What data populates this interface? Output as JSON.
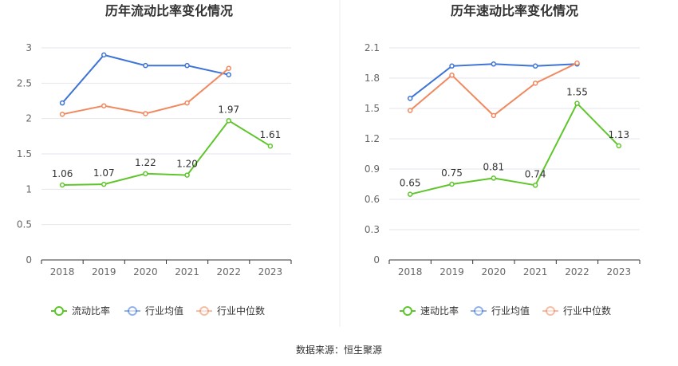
{
  "source": "数据来源：恒生聚源",
  "colors": {
    "company": "#5ec52b",
    "avg": "#3d74d6",
    "median": "#f0895f",
    "grid": "#e6e6ee",
    "axis": "#333333"
  },
  "chart_data": [
    {
      "type": "line",
      "title": "历年流动比率变化情况",
      "categories": [
        "2018",
        "2019",
        "2020",
        "2021",
        "2022",
        "2023"
      ],
      "ylim": [
        0,
        3
      ],
      "yticks": [
        "0",
        "0.5",
        "1",
        "1.5",
        "2",
        "2.5",
        "3"
      ],
      "ytick_values": [
        0,
        0.5,
        1,
        1.5,
        2,
        2.5,
        3
      ],
      "grid": true,
      "legend": "bottom",
      "series": [
        {
          "name": "流动比率",
          "key": "company",
          "values": [
            1.06,
            1.07,
            1.22,
            1.2,
            1.97,
            1.61
          ],
          "labels": [
            "1.06",
            "1.07",
            "1.22",
            "1.20",
            "1.97",
            "1.61"
          ]
        },
        {
          "name": "行业均值",
          "key": "avg",
          "values": [
            2.22,
            2.9,
            2.75,
            2.75,
            2.62,
            null
          ]
        },
        {
          "name": "行业中位数",
          "key": "median",
          "values": [
            2.06,
            2.18,
            2.07,
            2.22,
            2.71,
            null
          ]
        }
      ]
    },
    {
      "type": "line",
      "title": "历年速动比率变化情况",
      "categories": [
        "2018",
        "2019",
        "2020",
        "2021",
        "2022",
        "2023"
      ],
      "ylim": [
        0,
        2.1
      ],
      "yticks": [
        "0",
        "0.3",
        "0.6",
        "0.9",
        "1.2",
        "1.5",
        "1.8",
        "2.1"
      ],
      "ytick_values": [
        0,
        0.3,
        0.6,
        0.9,
        1.2,
        1.5,
        1.8,
        2.1
      ],
      "grid": true,
      "legend": "bottom",
      "series": [
        {
          "name": "速动比率",
          "key": "company",
          "values": [
            0.65,
            0.75,
            0.81,
            0.74,
            1.55,
            1.13
          ],
          "labels": [
            "0.65",
            "0.75",
            "0.81",
            "0.74",
            "1.55",
            "1.13"
          ]
        },
        {
          "name": "行业均值",
          "key": "avg",
          "values": [
            1.6,
            1.92,
            1.94,
            1.92,
            1.94,
            null
          ]
        },
        {
          "name": "行业中位数",
          "key": "median",
          "values": [
            1.48,
            1.83,
            1.43,
            1.75,
            1.95,
            null
          ]
        }
      ]
    }
  ]
}
